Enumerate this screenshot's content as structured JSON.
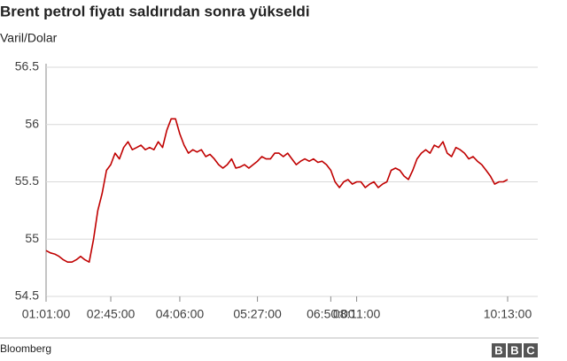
{
  "chart_data": {
    "type": "line",
    "title": "Brent petrol fiyatı saldırıdan sonra yükseldi",
    "subtitle": "Varil/Dolar",
    "categories": [
      "01:01:00",
      null,
      null,
      null,
      null,
      null,
      null,
      null,
      null,
      null,
      null,
      null,
      null,
      null,
      null,
      "02:45:00",
      null,
      null,
      null,
      null,
      null,
      null,
      null,
      null,
      null,
      null,
      null,
      null,
      null,
      null,
      null,
      "04:06:00",
      null,
      null,
      null,
      null,
      null,
      null,
      null,
      null,
      null,
      null,
      null,
      null,
      null,
      null,
      null,
      null,
      null,
      "05:27:00",
      null,
      null,
      null,
      null,
      null,
      null,
      null,
      null,
      null,
      null,
      null,
      null,
      null,
      null,
      null,
      null,
      "06:50:00",
      null,
      null,
      null,
      null,
      null,
      "08:11:00",
      null,
      null,
      null,
      null,
      null,
      null,
      null,
      null,
      null,
      null,
      null,
      null,
      null,
      null,
      null,
      null,
      null,
      null,
      null,
      null,
      null,
      null,
      null,
      null,
      null,
      null,
      null,
      null,
      null,
      null,
      null,
      null,
      null,
      null,
      "10:13:00"
    ],
    "series": [
      {
        "color": "#c00000",
        "values": [
          54.9,
          54.88,
          54.87,
          54.85,
          54.82,
          54.8,
          54.8,
          54.82,
          54.85,
          54.82,
          54.8,
          55.0,
          55.25,
          55.4,
          55.6,
          55.65,
          55.75,
          55.7,
          55.8,
          55.85,
          55.78,
          55.8,
          55.82,
          55.78,
          55.8,
          55.78,
          55.85,
          55.8,
          55.95,
          56.05,
          56.05,
          55.92,
          55.82,
          55.75,
          55.78,
          55.76,
          55.78,
          55.72,
          55.74,
          55.7,
          55.65,
          55.62,
          55.65,
          55.7,
          55.62,
          55.63,
          55.65,
          55.62,
          55.65,
          55.68,
          55.72,
          55.7,
          55.7,
          55.75,
          55.75,
          55.72,
          55.75,
          55.7,
          55.65,
          55.68,
          55.7,
          55.68,
          55.7,
          55.67,
          55.68,
          55.65,
          55.6,
          55.5,
          55.45,
          55.5,
          55.52,
          55.48,
          55.5,
          55.5,
          55.45,
          55.48,
          55.5,
          55.45,
          55.48,
          55.5,
          55.6,
          55.62,
          55.6,
          55.55,
          55.52,
          55.6,
          55.7,
          55.75,
          55.78,
          55.75,
          55.82,
          55.8,
          55.85,
          55.75,
          55.72,
          55.8,
          55.78,
          55.75,
          55.7,
          55.72,
          55.68,
          55.65,
          55.6,
          55.55,
          55.48,
          55.5,
          55.5,
          55.52
        ]
      }
    ],
    "ylim": [
      54.5,
      56.5
    ],
    "yticks": [
      54.5,
      55,
      55.5,
      56,
      56.5
    ],
    "grid": true,
    "source": "Bloomberg",
    "logo": [
      "B",
      "B",
      "C"
    ]
  }
}
